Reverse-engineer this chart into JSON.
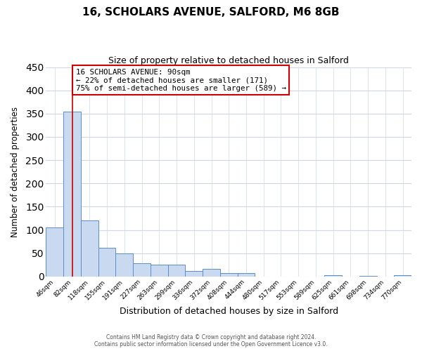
{
  "title": "16, SCHOLARS AVENUE, SALFORD, M6 8GB",
  "subtitle": "Size of property relative to detached houses in Salford",
  "xlabel": "Distribution of detached houses by size in Salford",
  "ylabel": "Number of detached properties",
  "categories": [
    "46sqm",
    "82sqm",
    "118sqm",
    "155sqm",
    "191sqm",
    "227sqm",
    "263sqm",
    "299sqm",
    "336sqm",
    "372sqm",
    "408sqm",
    "444sqm",
    "480sqm",
    "517sqm",
    "553sqm",
    "589sqm",
    "625sqm",
    "661sqm",
    "698sqm",
    "734sqm",
    "770sqm"
  ],
  "values": [
    105,
    355,
    120,
    61,
    49,
    29,
    26,
    25,
    12,
    16,
    7,
    8,
    0,
    0,
    0,
    0,
    2,
    0,
    1,
    0,
    3
  ],
  "bar_color": "#c8d9f0",
  "bar_edge_color": "#5b8dc8",
  "property_line_x": 1.0,
  "annotation_text_line1": "16 SCHOLARS AVENUE: 90sqm",
  "annotation_text_line2": "← 22% of detached houses are smaller (171)",
  "annotation_text_line3": "75% of semi-detached houses are larger (589) →",
  "annotation_box_color": "#ffffff",
  "annotation_box_edge": "#cc0000",
  "property_line_color": "#cc0000",
  "ylim": [
    0,
    450
  ],
  "background_color": "#ffffff",
  "grid_color": "#d0d8e8",
  "footer_line1": "Contains HM Land Registry data © Crown copyright and database right 2024.",
  "footer_line2": "Contains public sector information licensed under the Open Government Licence v3.0."
}
